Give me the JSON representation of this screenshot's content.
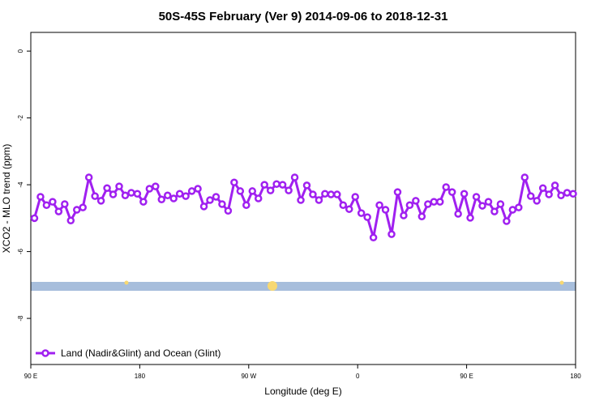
{
  "chart_data": {
    "type": "line",
    "title": "50S-45S February (Ver 9)   2014-09-06 to 2018-12-31",
    "x_label": "Longitude (deg E)",
    "y_label": "XCO2 - MLO trend (ppm)",
    "xlim": [
      90,
      540
    ],
    "ylim": [
      -9.38,
      0.56
    ],
    "xticks": [
      {
        "value": 90,
        "label": "90 E"
      },
      {
        "value": 180,
        "label": "180"
      },
      {
        "value": 270,
        "label": "90 W"
      },
      {
        "value": 360,
        "label": "0"
      },
      {
        "value": 450,
        "label": "90 E"
      },
      {
        "value": 540,
        "label": "180"
      }
    ],
    "yticks": [
      0,
      -2,
      -4,
      -6,
      -8
    ],
    "legend": "bottom-left",
    "x": [
      93,
      98,
      103,
      108,
      113,
      118,
      123,
      128,
      133,
      138,
      143,
      148,
      153,
      158,
      163,
      168,
      173,
      178,
      183,
      188,
      193,
      198,
      203,
      208,
      213,
      218,
      223,
      228,
      233,
      238,
      243,
      248,
      253,
      258,
      263,
      268,
      273,
      278,
      283,
      288,
      293,
      298,
      303,
      308,
      313,
      318,
      323,
      328,
      333,
      338,
      343,
      348,
      353,
      358,
      363,
      368,
      373,
      378,
      383,
      388,
      393,
      398,
      403,
      408,
      413,
      418,
      423,
      428,
      433,
      438,
      443,
      448,
      453,
      458,
      463,
      468,
      473,
      478,
      483,
      488,
      493,
      498,
      503,
      508,
      513,
      518,
      523,
      528,
      533,
      538
    ],
    "series": [
      {
        "name": "Land (Nadir&Glint) and Ocean (Glint)",
        "color": "#a020f0",
        "values": [
          -5.0,
          -4.36,
          -4.61,
          -4.51,
          -4.8,
          -4.58,
          -5.07,
          -4.75,
          -4.68,
          -3.78,
          -4.34,
          -4.48,
          -4.1,
          -4.29,
          -4.05,
          -4.32,
          -4.24,
          -4.27,
          -4.51,
          -4.12,
          -4.05,
          -4.44,
          -4.32,
          -4.41,
          -4.27,
          -4.34,
          -4.19,
          -4.12,
          -4.65,
          -4.46,
          -4.36,
          -4.58,
          -4.78,
          -3.93,
          -4.19,
          -4.61,
          -4.19,
          -4.41,
          -4.0,
          -4.17,
          -3.98,
          -4.0,
          -4.17,
          -3.78,
          -4.46,
          -4.02,
          -4.29,
          -4.46,
          -4.27,
          -4.29,
          -4.29,
          -4.61,
          -4.73,
          -4.36,
          -4.85,
          -4.97,
          -5.58,
          -4.61,
          -4.75,
          -5.48,
          -4.22,
          -4.92,
          -4.61,
          -4.48,
          -4.95,
          -4.58,
          -4.51,
          -4.51,
          -4.07,
          -4.22,
          -4.87,
          -4.27,
          -4.99,
          -4.36,
          -4.63,
          -4.51,
          -4.8,
          -4.58,
          -5.09,
          -4.75,
          -4.68,
          -3.78,
          -4.34,
          -4.48,
          -4.1,
          -4.29,
          -4.02,
          -4.32,
          -4.24,
          -4.27
        ]
      }
    ]
  }
}
